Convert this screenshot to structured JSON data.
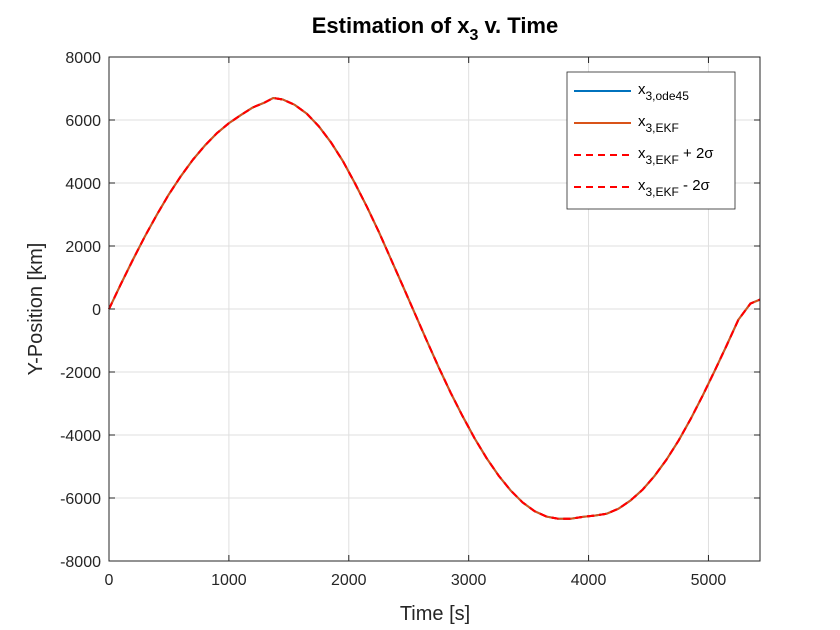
{
  "chart_data": {
    "type": "line",
    "title": "Estimation of x",
    "title_subscript": "3",
    "title_suffix": " v. Time",
    "xlabel": "Time [s]",
    "ylabel": "Y-Position [km]",
    "xlim": [
      0,
      5430
    ],
    "ylim": [
      -8000,
      8000
    ],
    "xticks": [
      0,
      1000,
      2000,
      3000,
      4000,
      5000
    ],
    "yticks": [
      -8000,
      -6000,
      -4000,
      -2000,
      0,
      2000,
      4000,
      6000,
      8000
    ],
    "grid": true,
    "legend_position": "top-right",
    "x": [
      0,
      100,
      200,
      300,
      400,
      500,
      600,
      700,
      800,
      900,
      1000,
      1100,
      1200,
      1300,
      1370,
      1450,
      1550,
      1650,
      1750,
      1850,
      1950,
      2050,
      2150,
      2250,
      2350,
      2450,
      2550,
      2650,
      2750,
      2850,
      2950,
      3050,
      3150,
      3250,
      3350,
      3450,
      3550,
      3650,
      3750,
      3850,
      3950,
      4050,
      4150,
      4250,
      4350,
      4450,
      4550,
      4650,
      4750,
      4850,
      4950,
      5050,
      5150,
      5250,
      5350,
      5430
    ],
    "series": [
      {
        "name": "x",
        "subscript": "3,ode45",
        "suffix": "",
        "color": "#0072BD",
        "dash": "solid",
        "values": [
          0,
          800,
          1570,
          2310,
          3000,
          3640,
          4220,
          4740,
          5190,
          5580,
          5900,
          6160,
          6400,
          6560,
          6700,
          6650,
          6480,
          6200,
          5800,
          5300,
          4700,
          4000,
          3250,
          2450,
          1600,
          740,
          -130,
          -1000,
          -1850,
          -2660,
          -3410,
          -4110,
          -4740,
          -5290,
          -5760,
          -6140,
          -6420,
          -6590,
          -6660,
          -6660,
          -6600,
          -6560,
          -6500,
          -6340,
          -6080,
          -5740,
          -5300,
          -4780,
          -4180,
          -3500,
          -2760,
          -1980,
          -1170,
          -340,
          170,
          300
        ]
      },
      {
        "name": "x",
        "subscript": "3,EKF",
        "suffix": "",
        "color": "#D95319",
        "dash": "solid",
        "values": [
          0,
          800,
          1570,
          2310,
          3000,
          3640,
          4220,
          4740,
          5190,
          5580,
          5900,
          6160,
          6400,
          6560,
          6700,
          6650,
          6480,
          6200,
          5800,
          5300,
          4700,
          4000,
          3250,
          2450,
          1600,
          740,
          -130,
          -1000,
          -1850,
          -2660,
          -3410,
          -4110,
          -4740,
          -5290,
          -5760,
          -6140,
          -6420,
          -6590,
          -6660,
          -6660,
          -6600,
          -6560,
          -6500,
          -6340,
          -6080,
          -5740,
          -5300,
          -4780,
          -4180,
          -3500,
          -2760,
          -1980,
          -1170,
          -340,
          170,
          300
        ]
      },
      {
        "name": "x",
        "subscript": "3,EKF",
        "suffix": " + 2σ",
        "color": "#FF0000",
        "dash": "dashed",
        "values": [
          0,
          800,
          1570,
          2310,
          3000,
          3640,
          4220,
          4740,
          5190,
          5580,
          5900,
          6160,
          6400,
          6560,
          6700,
          6650,
          6480,
          6200,
          5800,
          5300,
          4700,
          4000,
          3250,
          2450,
          1600,
          740,
          -130,
          -1000,
          -1850,
          -2660,
          -3410,
          -4110,
          -4740,
          -5290,
          -5760,
          -6140,
          -6420,
          -6590,
          -6660,
          -6660,
          -6600,
          -6560,
          -6500,
          -6340,
          -6080,
          -5740,
          -5300,
          -4780,
          -4180,
          -3500,
          -2760,
          -1980,
          -1170,
          -340,
          170,
          300
        ]
      },
      {
        "name": "x",
        "subscript": "3,EKF",
        "suffix": " - 2σ",
        "color": "#FF0000",
        "dash": "dashed",
        "values": [
          0,
          800,
          1570,
          2310,
          3000,
          3640,
          4220,
          4740,
          5190,
          5580,
          5900,
          6160,
          6400,
          6560,
          6700,
          6650,
          6480,
          6200,
          5800,
          5300,
          4700,
          4000,
          3250,
          2450,
          1600,
          740,
          -130,
          -1000,
          -1850,
          -2660,
          -3410,
          -4110,
          -4740,
          -5290,
          -5760,
          -6140,
          -6420,
          -6590,
          -6660,
          -6660,
          -6600,
          -6560,
          -6500,
          -6340,
          -6080,
          -5740,
          -5300,
          -4780,
          -4180,
          -3500,
          -2760,
          -1980,
          -1170,
          -340,
          170,
          300
        ]
      }
    ]
  }
}
